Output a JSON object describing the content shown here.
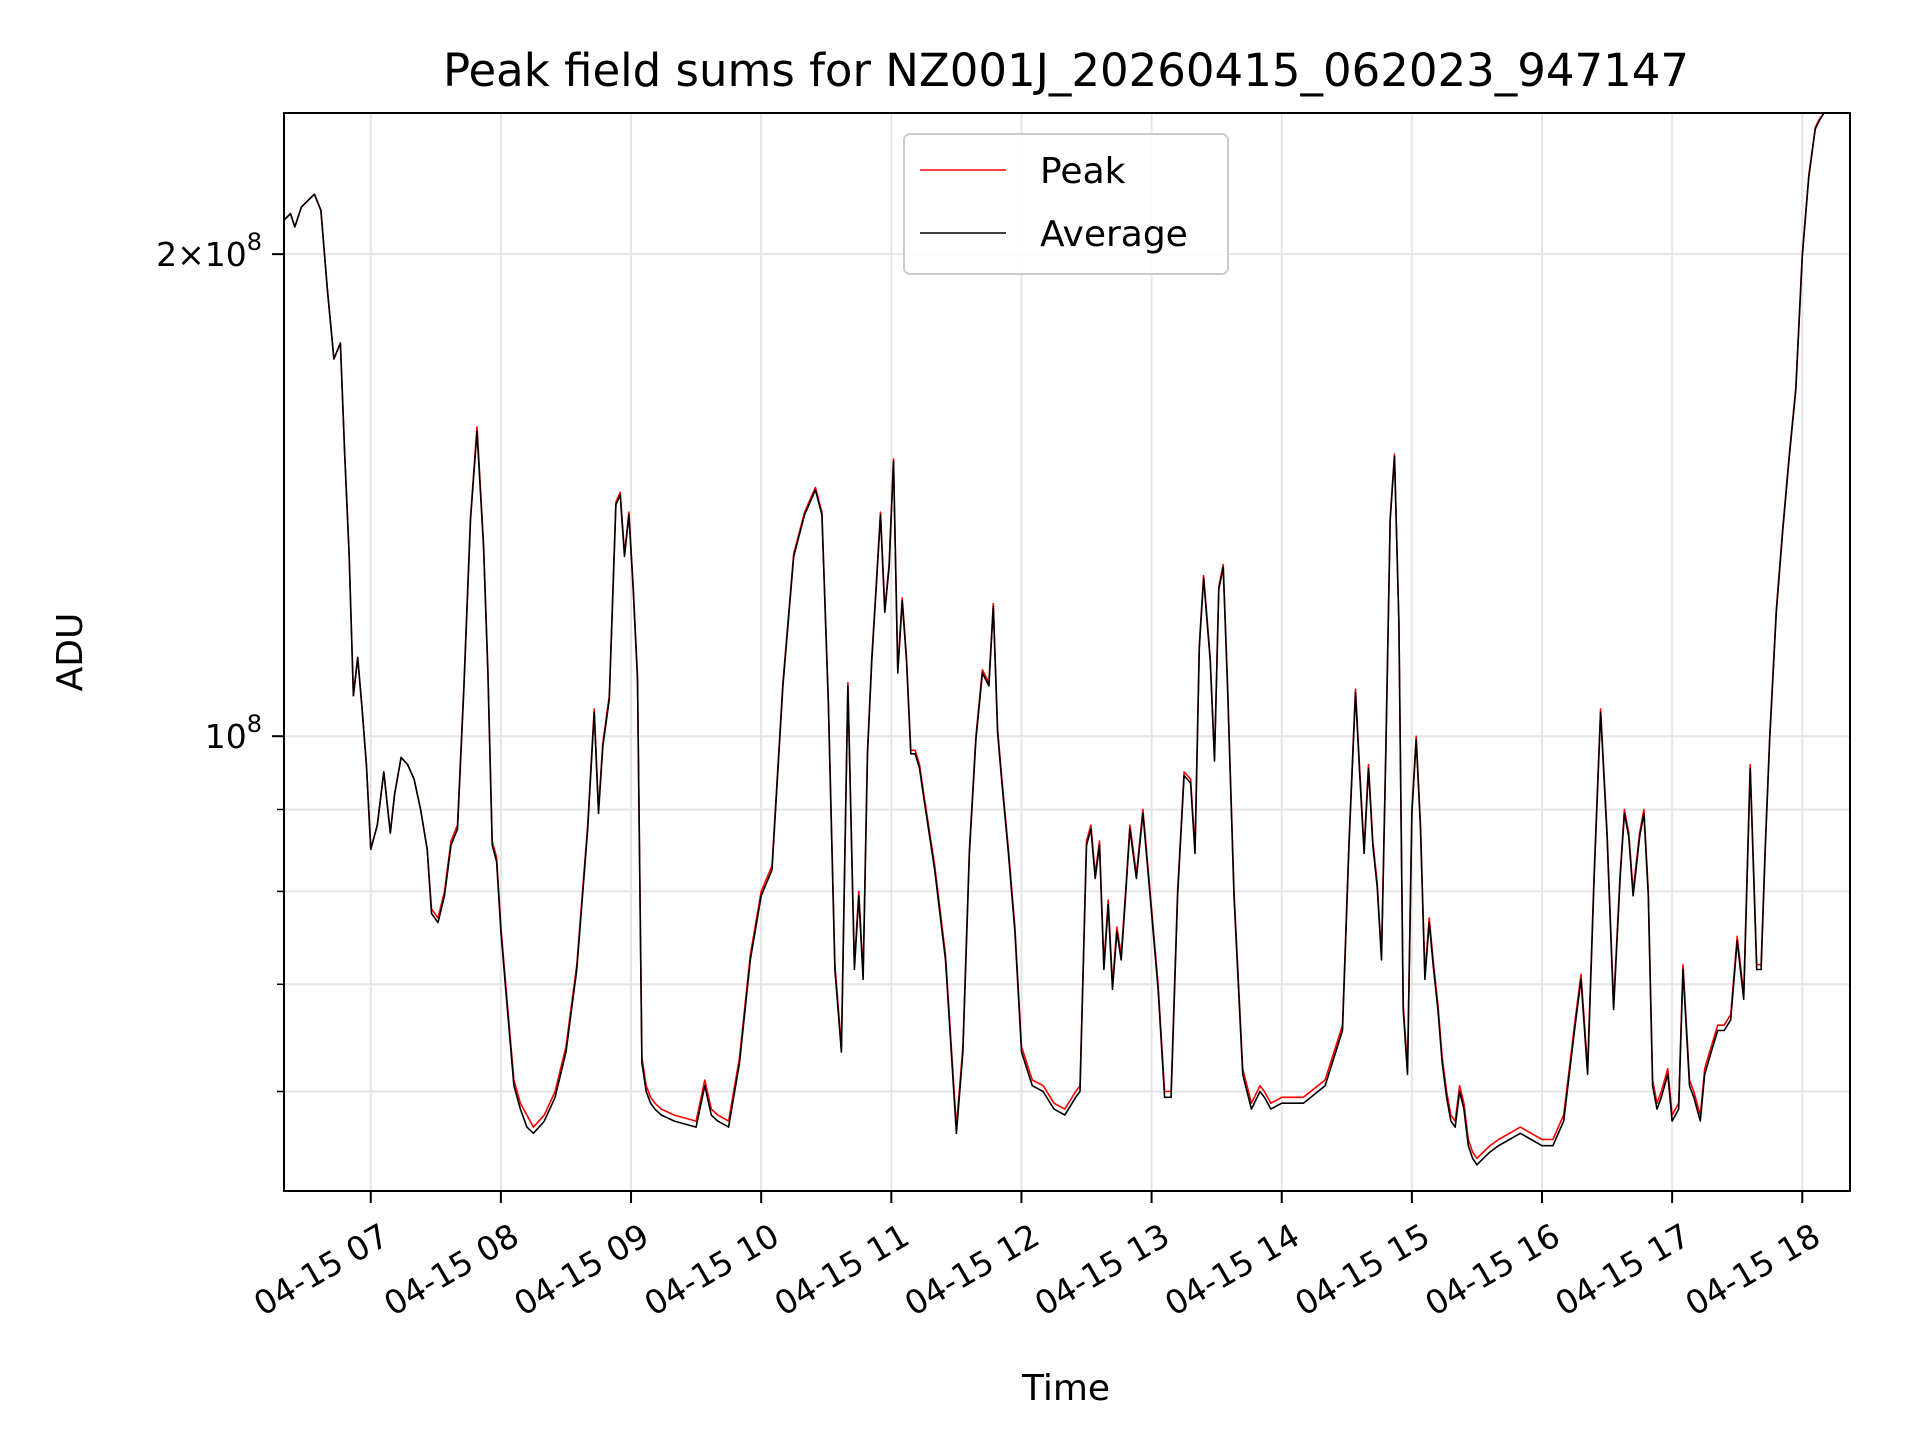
{
  "chart_data": {
    "type": "line",
    "title": "Peak field sums for NZ001J_20260415_062023_947147",
    "xlabel": "Time",
    "ylabel": "ADU",
    "y_scale": "log",
    "ylim": [
      52000000,
      245000000
    ],
    "xlim": [
      "2026-04-15 06:20",
      "2026-04-15 18:22"
    ],
    "grid": true,
    "legend_position": "top-center",
    "x_ticks": [
      "04-15 07",
      "04-15 08",
      "04-15 09",
      "04-15 10",
      "04-15 11",
      "04-15 12",
      "04-15 13",
      "04-15 14",
      "04-15 15",
      "04-15 16",
      "04-15 17",
      "04-15 18"
    ],
    "x_tick_times": [
      "2026-04-15 07:00",
      "2026-04-15 08:00",
      "2026-04-15 09:00",
      "2026-04-15 10:00",
      "2026-04-15 11:00",
      "2026-04-15 12:00",
      "2026-04-15 13:00",
      "2026-04-15 14:00",
      "2026-04-15 15:00",
      "2026-04-15 16:00",
      "2026-04-15 17:00",
      "2026-04-15 18:00"
    ],
    "y_major_ticks": [
      {
        "value": 100000000,
        "mantissa": "",
        "exponent": "8"
      },
      {
        "value": 200000000,
        "mantissa": "2",
        "exponent": "8"
      }
    ],
    "y_minor_ticks": [
      60000000,
      70000000,
      80000000,
      90000000
    ],
    "time": [
      "2026-04-15 06:20",
      "2026-04-15 06:23",
      "2026-04-15 06:25",
      "2026-04-15 06:28",
      "2026-04-15 06:31",
      "2026-04-15 06:34",
      "2026-04-15 06:37",
      "2026-04-15 06:40",
      "2026-04-15 06:43",
      "2026-04-15 06:46",
      "2026-04-15 06:48",
      "2026-04-15 06:50",
      "2026-04-15 06:52",
      "2026-04-15 06:54",
      "2026-04-15 06:56",
      "2026-04-15 06:58",
      "2026-04-15 07:00",
      "2026-04-15 07:03",
      "2026-04-15 07:06",
      "2026-04-15 07:09",
      "2026-04-15 07:11",
      "2026-04-15 07:14",
      "2026-04-15 07:17",
      "2026-04-15 07:20",
      "2026-04-15 07:23",
      "2026-04-15 07:26",
      "2026-04-15 07:28",
      "2026-04-15 07:31",
      "2026-04-15 07:34",
      "2026-04-15 07:37",
      "2026-04-15 07:40",
      "2026-04-15 07:43",
      "2026-04-15 07:46",
      "2026-04-15 07:49",
      "2026-04-15 07:52",
      "2026-04-15 07:54",
      "2026-04-15 07:56",
      "2026-04-15 07:58",
      "2026-04-15 08:00",
      "2026-04-15 08:03",
      "2026-04-15 08:06",
      "2026-04-15 08:09",
      "2026-04-15 08:12",
      "2026-04-15 08:15",
      "2026-04-15 08:20",
      "2026-04-15 08:25",
      "2026-04-15 08:30",
      "2026-04-15 08:35",
      "2026-04-15 08:40",
      "2026-04-15 08:43",
      "2026-04-15 08:45",
      "2026-04-15 08:47",
      "2026-04-15 08:50",
      "2026-04-15 08:53",
      "2026-04-15 08:55",
      "2026-04-15 08:57",
      "2026-04-15 08:59",
      "2026-04-15 09:01",
      "2026-04-15 09:03",
      "2026-04-15 09:05",
      "2026-04-15 09:07",
      "2026-04-15 09:09",
      "2026-04-15 09:11",
      "2026-04-15 09:14",
      "2026-04-15 09:20",
      "2026-04-15 09:30",
      "2026-04-15 09:34",
      "2026-04-15 09:37",
      "2026-04-15 09:40",
      "2026-04-15 09:45",
      "2026-04-15 09:50",
      "2026-04-15 09:55",
      "2026-04-15 10:00",
      "2026-04-15 10:05",
      "2026-04-15 10:10",
      "2026-04-15 10:15",
      "2026-04-15 10:20",
      "2026-04-15 10:25",
      "2026-04-15 10:28",
      "2026-04-15 10:31",
      "2026-04-15 10:34",
      "2026-04-15 10:37",
      "2026-04-15 10:40",
      "2026-04-15 10:43",
      "2026-04-15 10:45",
      "2026-04-15 10:47",
      "2026-04-15 10:49",
      "2026-04-15 10:51",
      "2026-04-15 10:53",
      "2026-04-15 10:55",
      "2026-04-15 10:57",
      "2026-04-15 10:59",
      "2026-04-15 11:01",
      "2026-04-15 11:03",
      "2026-04-15 11:05",
      "2026-04-15 11:07",
      "2026-04-15 11:09",
      "2026-04-15 11:11",
      "2026-04-15 11:13",
      "2026-04-15 11:15",
      "2026-04-15 11:20",
      "2026-04-15 11:25",
      "2026-04-15 11:30",
      "2026-04-15 11:33",
      "2026-04-15 11:36",
      "2026-04-15 11:39",
      "2026-04-15 11:42",
      "2026-04-15 11:45",
      "2026-04-15 11:47",
      "2026-04-15 11:49",
      "2026-04-15 11:51",
      "2026-04-15 11:54",
      "2026-04-15 11:57",
      "2026-04-15 12:00",
      "2026-04-15 12:05",
      "2026-04-15 12:10",
      "2026-04-15 12:15",
      "2026-04-15 12:20",
      "2026-04-15 12:25",
      "2026-04-15 12:27",
      "2026-04-15 12:30",
      "2026-04-15 12:32",
      "2026-04-15 12:34",
      "2026-04-15 12:36",
      "2026-04-15 12:38",
      "2026-04-15 12:40",
      "2026-04-15 12:42",
      "2026-04-15 12:44",
      "2026-04-15 12:46",
      "2026-04-15 12:48",
      "2026-04-15 12:50",
      "2026-04-15 12:53",
      "2026-04-15 12:56",
      "2026-04-15 13:00",
      "2026-04-15 13:03",
      "2026-04-15 13:06",
      "2026-04-15 13:09",
      "2026-04-15 13:12",
      "2026-04-15 13:15",
      "2026-04-15 13:18",
      "2026-04-15 13:20",
      "2026-04-15 13:22",
      "2026-04-15 13:24",
      "2026-04-15 13:27",
      "2026-04-15 13:29",
      "2026-04-15 13:31",
      "2026-04-15 13:33",
      "2026-04-15 13:35",
      "2026-04-15 13:38",
      "2026-04-15 13:42",
      "2026-04-15 13:46",
      "2026-04-15 13:50",
      "2026-04-15 13:52",
      "2026-04-15 13:55",
      "2026-04-15 14:00",
      "2026-04-15 14:10",
      "2026-04-15 14:20",
      "2026-04-15 14:28",
      "2026-04-15 14:31",
      "2026-04-15 14:34",
      "2026-04-15 14:36",
      "2026-04-15 14:38",
      "2026-04-15 14:40",
      "2026-04-15 14:42",
      "2026-04-15 14:44",
      "2026-04-15 14:46",
      "2026-04-15 14:48",
      "2026-04-15 14:50",
      "2026-04-15 14:52",
      "2026-04-15 14:54",
      "2026-04-15 14:56",
      "2026-04-15 14:58",
      "2026-04-15 15:00",
      "2026-04-15 15:02",
      "2026-04-15 15:04",
      "2026-04-15 15:06",
      "2026-04-15 15:08",
      "2026-04-15 15:10",
      "2026-04-15 15:12",
      "2026-04-15 15:14",
      "2026-04-15 15:16",
      "2026-04-15 15:18",
      "2026-04-15 15:20",
      "2026-04-15 15:22",
      "2026-04-15 15:24",
      "2026-04-15 15:26",
      "2026-04-15 15:28",
      "2026-04-15 15:30",
      "2026-04-15 15:33",
      "2026-04-15 15:36",
      "2026-04-15 15:40",
      "2026-04-15 15:45",
      "2026-04-15 15:50",
      "2026-04-15 15:55",
      "2026-04-15 16:00",
      "2026-04-15 16:05",
      "2026-04-15 16:10",
      "2026-04-15 16:15",
      "2026-04-15 16:18",
      "2026-04-15 16:21",
      "2026-04-15 16:24",
      "2026-04-15 16:27",
      "2026-04-15 16:30",
      "2026-04-15 16:33",
      "2026-04-15 16:36",
      "2026-04-15 16:38",
      "2026-04-15 16:40",
      "2026-04-15 16:42",
      "2026-04-15 16:45",
      "2026-04-15 16:47",
      "2026-04-15 16:49",
      "2026-04-15 16:51",
      "2026-04-15 16:53",
      "2026-04-15 16:55",
      "2026-04-15 16:58",
      "2026-04-15 17:00",
      "2026-04-15 17:03",
      "2026-04-15 17:05",
      "2026-04-15 17:08",
      "2026-04-15 17:10",
      "2026-04-15 17:13",
      "2026-04-15 17:15",
      "2026-04-15 17:18",
      "2026-04-15 17:21",
      "2026-04-15 17:24",
      "2026-04-15 17:27",
      "2026-04-15 17:30",
      "2026-04-15 17:33",
      "2026-04-15 17:36",
      "2026-04-15 17:39",
      "2026-04-15 17:41",
      "2026-04-15 17:43",
      "2026-04-15 17:45",
      "2026-04-15 17:48",
      "2026-04-15 17:51",
      "2026-04-15 17:54",
      "2026-04-15 17:57",
      "2026-04-15 18:00",
      "2026-04-15 18:03",
      "2026-04-15 18:06",
      "2026-04-15 18:08",
      "2026-04-15 18:10",
      "2026-04-15 18:12",
      "2026-04-15 18:15",
      "2026-04-15 18:18",
      "2026-04-15 18:22"
    ],
    "series": [
      {
        "name": "Peak",
        "color": "#ff0000",
        "values": [
          210000000,
          212000000,
          208000000,
          214000000,
          216000000,
          218000000,
          213000000,
          190000000,
          172000000,
          176000000,
          150000000,
          130000000,
          106000000,
          112000000,
          104000000,
          96000000,
          85000000,
          88000000,
          95000000,
          87000000,
          92000000,
          97000000,
          96000000,
          94000000,
          90000000,
          85000000,
          78000000,
          77000000,
          80000000,
          86000000,
          88000000,
          108000000,
          137000000,
          156000000,
          132000000,
          110000000,
          86000000,
          84000000,
          76000000,
          68000000,
          61000000,
          59000000,
          58000000,
          57000000,
          58000000,
          60000000,
          64000000,
          72000000,
          88000000,
          104000000,
          90000000,
          99000000,
          106000000,
          140000000,
          142000000,
          130000000,
          138000000,
          124000000,
          109000000,
          63000000,
          60500000,
          59500000,
          59000000,
          58500000,
          58000000,
          57500000,
          61000000,
          58500000,
          58000000,
          57500000,
          63000000,
          73000000,
          80000000,
          83000000,
          108000000,
          130000000,
          138000000,
          143000000,
          138000000,
          105000000,
          72000000,
          64000000,
          108000000,
          72000000,
          80000000,
          71000000,
          98000000,
          112000000,
          124000000,
          138000000,
          120000000,
          128000000,
          149000000,
          110000000,
          122000000,
          112000000,
          98000000,
          98000000,
          96000000,
          92000000,
          83000000,
          73000000,
          57000000,
          64000000,
          85000000,
          100000000,
          110000000,
          108000000,
          121000000,
          101000000,
          94000000,
          85000000,
          76000000,
          64000000,
          61000000,
          60500000,
          59000000,
          58500000,
          60000000,
          60500000,
          86000000,
          88000000,
          82000000,
          86000000,
          72000000,
          79000000,
          70000000,
          76000000,
          73000000,
          80000000,
          88000000,
          82000000,
          90000000,
          78000000,
          70000000,
          60000000,
          60000000,
          80000000,
          95000000,
          94000000,
          85000000,
          114000000,
          126000000,
          112000000,
          97000000,
          124000000,
          128000000,
          108000000,
          80000000,
          62000000,
          59000000,
          60500000,
          60000000,
          59000000,
          59500000,
          59500000,
          61000000,
          66000000,
          86000000,
          107000000,
          95000000,
          85000000,
          96000000,
          86000000,
          81000000,
          73000000,
          98000000,
          137000000,
          150000000,
          118000000,
          68000000,
          62000000,
          90000000,
          100000000,
          88000000,
          71000000,
          77000000,
          72000000,
          68000000,
          63000000,
          60000000,
          58000000,
          57500000,
          60500000,
          59000000,
          56000000,
          55000000,
          54500000,
          55000000,
          55500000,
          56000000,
          56500000,
          57000000,
          56500000,
          56000000,
          56000000,
          58000000,
          66000000,
          71000000,
          62000000,
          82000000,
          104000000,
          87000000,
          68000000,
          82000000,
          90000000,
          87000000,
          80000000,
          87000000,
          90000000,
          80000000,
          61000000,
          59000000,
          60000000,
          62000000,
          58000000,
          59000000,
          72000000,
          61000000,
          60000000,
          58000000,
          62000000,
          64000000,
          66000000,
          66000000,
          67000000,
          75000000,
          69000000,
          96000000,
          72000000,
          72000000,
          86000000,
          100000000,
          120000000,
          135000000,
          150000000,
          165000000,
          200000000,
          224000000,
          240000000,
          243000000,
          245000000
        ]
      },
      {
        "name": "Average",
        "color": "#000000",
        "values": [
          210000000,
          212000000,
          208000000,
          214000000,
          216000000,
          218000000,
          213000000,
          190000000,
          172000000,
          176000000,
          150000000,
          130000000,
          106000000,
          112000000,
          104000000,
          96000000,
          85000000,
          88000000,
          95000000,
          87000000,
          92000000,
          97000000,
          96000000,
          94000000,
          90000000,
          85000000,
          77500000,
          76500000,
          79500000,
          85500000,
          87500000,
          107500000,
          136500000,
          155000000,
          131500000,
          109500000,
          85500000,
          83500000,
          75500000,
          67500000,
          60500000,
          58500000,
          57000000,
          56500000,
          57500000,
          59500000,
          63500000,
          71500000,
          87500000,
          103500000,
          89500000,
          98500000,
          105500000,
          139500000,
          141500000,
          129500000,
          137500000,
          123500000,
          108500000,
          62500000,
          60000000,
          59000000,
          58500000,
          58000000,
          57500000,
          57000000,
          60500000,
          58000000,
          57500000,
          57000000,
          62500000,
          72500000,
          79500000,
          82500000,
          107500000,
          129500000,
          137500000,
          142500000,
          137500000,
          104500000,
          71500000,
          63500000,
          107500000,
          71500000,
          79500000,
          70500000,
          97500000,
          111500000,
          123500000,
          137500000,
          119500000,
          127500000,
          148500000,
          109500000,
          121500000,
          111500000,
          97500000,
          97500000,
          95500000,
          91500000,
          82500000,
          72500000,
          56500000,
          63500000,
          84500000,
          99500000,
          109500000,
          107500000,
          120500000,
          100500000,
          93500000,
          84500000,
          75500000,
          63500000,
          60500000,
          60000000,
          58500000,
          58000000,
          59500000,
          60000000,
          85500000,
          87500000,
          81500000,
          85500000,
          71500000,
          78500000,
          69500000,
          75500000,
          72500000,
          79500000,
          87500000,
          81500000,
          89500000,
          77500000,
          69500000,
          59500000,
          59500000,
          79500000,
          94500000,
          93500000,
          84500000,
          113500000,
          125500000,
          111500000,
          96500000,
          123500000,
          127500000,
          107500000,
          79500000,
          61500000,
          58500000,
          60000000,
          59500000,
          58500000,
          59000000,
          59000000,
          60500000,
          65500000,
          85500000,
          106500000,
          94500000,
          84500000,
          95500000,
          85500000,
          80500000,
          72500000,
          97500000,
          136500000,
          149500000,
          117500000,
          67500000,
          61500000,
          89500000,
          99500000,
          87500000,
          70500000,
          76500000,
          71500000,
          67500000,
          62500000,
          59500000,
          57500000,
          57000000,
          60000000,
          58500000,
          55500000,
          54500000,
          54000000,
          54500000,
          55000000,
          55500000,
          56000000,
          56500000,
          56000000,
          55500000,
          55500000,
          57500000,
          65500000,
          70500000,
          61500000,
          81500000,
          103500000,
          86500000,
          67500000,
          81500000,
          89500000,
          86500000,
          79500000,
          86500000,
          89500000,
          79500000,
          60500000,
          58500000,
          59500000,
          61500000,
          57500000,
          58500000,
          71500000,
          60500000,
          59500000,
          57500000,
          61500000,
          63500000,
          65500000,
          65500000,
          66500000,
          74500000,
          68500000,
          95500000,
          71500000,
          71500000,
          85500000,
          99500000,
          119500000,
          134500000,
          149500000,
          164500000,
          199500000,
          223500000,
          239500000,
          242500000,
          245000000
        ]
      }
    ]
  }
}
